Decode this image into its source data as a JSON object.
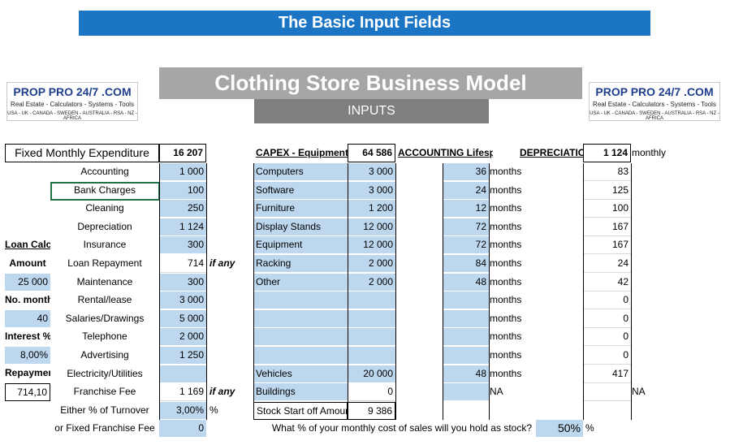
{
  "banner": "The Basic Input Fields",
  "title": "Clothing Store Business Model",
  "subtitle": "INPUTS",
  "logo": {
    "title": "PROP PRO 24/7 .COM",
    "tagline": "Real Estate - Calculators - Systems - Tools",
    "countries": "USA - UK - CANADA - SWEDEN - AUSTRALIA - RSA - NZ - AFRICA"
  },
  "expenditure": {
    "header": "Fixed Monthly Expenditure",
    "total": "16 207",
    "items": [
      {
        "label": "Accounting",
        "value": "1 000"
      },
      {
        "label": "Bank Charges",
        "value": "100"
      },
      {
        "label": "Cleaning",
        "value": "250"
      },
      {
        "label": "Depreciation",
        "value": "1 124"
      },
      {
        "label": "Insurance",
        "value": "300"
      },
      {
        "label": "Loan Repayment",
        "value": "714",
        "note": "if any"
      },
      {
        "label": "Maintenance",
        "value": "300"
      },
      {
        "label": "Rental/lease",
        "value": "3 000"
      },
      {
        "label": "Salaries/Drawings",
        "value": "5 000"
      },
      {
        "label": "Telephone",
        "value": "2 000"
      },
      {
        "label": "Advertising",
        "value": "1 250"
      },
      {
        "label": "Electricity/Utilities",
        "value": ""
      },
      {
        "label": "Franchise Fee",
        "value": "1 169",
        "note": "if any"
      },
      {
        "label": "Either % of Turnover",
        "value": "3,00%",
        "note": "%"
      },
      {
        "label": "or Fixed Franchise Fee",
        "value": "0"
      }
    ]
  },
  "loan": {
    "header": "Loan Calc",
    "amount_label": "Amount",
    "amount": "25 000",
    "months_label": "No. months",
    "months": "40",
    "interest_label": "Interest %",
    "interest": "8,00%",
    "repayment_label": "Repayment",
    "repayment": "714,10"
  },
  "capex": {
    "header": "CAPEX - Equipment/stoc",
    "total": "64 586",
    "lifespan_header": "ACCOUNTING Lifespan",
    "depreciation_header": "DEPRECIATION",
    "depreciation_total": "1 124",
    "depreciation_unit": "monthly",
    "rows": [
      {
        "label": "Computers",
        "value": "3 000",
        "lifespan": "36",
        "unit": "months",
        "dep": "83"
      },
      {
        "label": "Software",
        "value": "3 000",
        "lifespan": "24",
        "unit": "months",
        "dep": "125"
      },
      {
        "label": "Furniture",
        "value": "1 200",
        "lifespan": "12",
        "unit": "months",
        "dep": "100"
      },
      {
        "label": "Display Stands",
        "value": "12 000",
        "lifespan": "72",
        "unit": "months",
        "dep": "167"
      },
      {
        "label": "Equipment",
        "value": "12 000",
        "lifespan": "72",
        "unit": "months",
        "dep": "167"
      },
      {
        "label": "Racking",
        "value": "2 000",
        "lifespan": "84",
        "unit": "months",
        "dep": "24"
      },
      {
        "label": "Other",
        "value": "2 000",
        "lifespan": "48",
        "unit": "months",
        "dep": "42"
      },
      {
        "label": "",
        "value": "",
        "lifespan": "",
        "unit": "months",
        "dep": "0"
      },
      {
        "label": "",
        "value": "",
        "lifespan": "",
        "unit": "months",
        "dep": "0"
      },
      {
        "label": "",
        "value": "",
        "lifespan": "",
        "unit": "months",
        "dep": "0"
      },
      {
        "label": "",
        "value": "",
        "lifespan": "",
        "unit": "months",
        "dep": "0"
      },
      {
        "label": "Vehicles",
        "value": "20 000",
        "lifespan": "48",
        "unit": "months",
        "dep": "417"
      },
      {
        "label": "Buildings",
        "value": "0",
        "lifespan": "",
        "unit": "NA",
        "dep": "",
        "dep_note": "NA"
      }
    ],
    "stock_label": "Stock Start off Amount",
    "stock_value": "9 386"
  },
  "stock_question": "What % of your monthly cost of sales will you hold as stock?",
  "stock_percent": "50%",
  "stock_percent_unit": "%",
  "colors": {
    "banner": "#1b75c4",
    "input_blue": "#bdd7ee",
    "title_gray": "#a6a6a6",
    "subtitle_gray": "#7f7f7f",
    "selection_green": "#217346"
  }
}
